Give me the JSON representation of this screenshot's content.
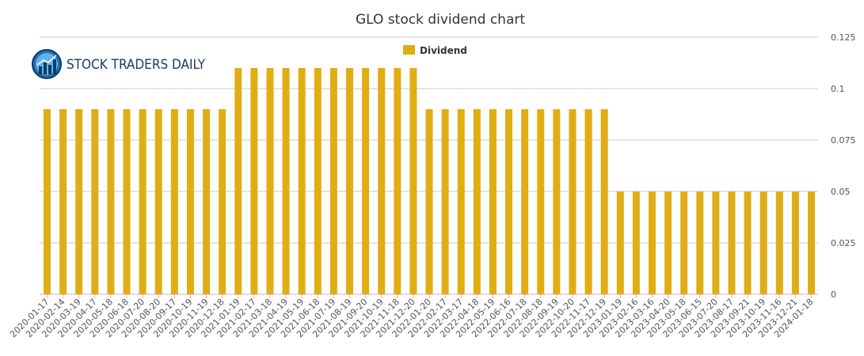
{
  "logo": {
    "text": "STOCK TRADERS DAILY",
    "icon": "bar-chart-globe-icon"
  },
  "colors": {
    "bar": "#E0AD15",
    "grid": "#C8C8C8",
    "text": "#555555"
  },
  "chart_data": {
    "type": "bar",
    "title": "GLO stock dividend chart",
    "xlabel": "",
    "ylabel": "",
    "legend": {
      "position": "top-center",
      "entries": [
        "Dividend"
      ]
    },
    "grid": true,
    "ylim": [
      0,
      0.125
    ],
    "yticks": [
      0,
      0.025,
      0.05,
      0.075,
      0.1,
      0.125
    ],
    "ytick_labels": [
      "0",
      "0.025",
      "0.05",
      "0.075",
      "0.1",
      "0.125"
    ],
    "y_axis_side": "right",
    "categories": [
      "2020-01-17",
      "2020-02-14",
      "2020-03-19",
      "2020-04-17",
      "2020-05-18",
      "2020-06-18",
      "2020-07-20",
      "2020-08-20",
      "2020-09-17",
      "2020-10-19",
      "2020-11-19",
      "2020-12-18",
      "2021-01-19",
      "2021-02-17",
      "2021-03-18",
      "2021-04-19",
      "2021-05-19",
      "2021-06-18",
      "2021-07-19",
      "2021-08-19",
      "2021-09-20",
      "2021-10-19",
      "2021-11-18",
      "2021-12-20",
      "2022-01-20",
      "2022-02-17",
      "2022-03-17",
      "2022-04-18",
      "2022-05-19",
      "2022-06-16",
      "2022-07-18",
      "2022-08-18",
      "2022-09-19",
      "2022-10-20",
      "2022-11-17",
      "2022-12-19",
      "2023-01-19",
      "2023-02-16",
      "2023-03-16",
      "2023-04-20",
      "2023-05-18",
      "2023-06-15",
      "2023-07-20",
      "2023-08-17",
      "2023-09-21",
      "2023-10-19",
      "2023-11-16",
      "2023-12-21",
      "2024-01-18"
    ],
    "series": [
      {
        "name": "Dividend",
        "values": [
          0.09,
          0.09,
          0.09,
          0.09,
          0.09,
          0.09,
          0.09,
          0.09,
          0.09,
          0.09,
          0.09,
          0.09,
          0.11,
          0.11,
          0.11,
          0.11,
          0.11,
          0.11,
          0.11,
          0.11,
          0.11,
          0.11,
          0.11,
          0.11,
          0.09,
          0.09,
          0.09,
          0.09,
          0.09,
          0.09,
          0.09,
          0.09,
          0.09,
          0.09,
          0.09,
          0.09,
          0.05,
          0.05,
          0.05,
          0.05,
          0.05,
          0.05,
          0.05,
          0.05,
          0.05,
          0.05,
          0.05,
          0.05,
          0.05
        ]
      }
    ]
  }
}
